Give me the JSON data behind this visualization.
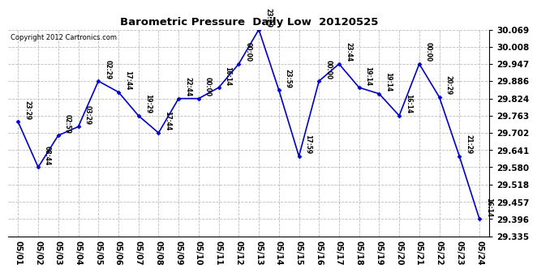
{
  "title": "Barometric Pressure  Daily Low  20120525",
  "copyright": "Copyright 2012 Cartronics.com",
  "background_color": "#ffffff",
  "plot_bg_color": "#ffffff",
  "line_color": "#0000cc",
  "marker_color": "#0000cc",
  "grid_color": "#bbbbbb",
  "dates": [
    "05/01",
    "05/02",
    "05/03",
    "05/04",
    "05/05",
    "05/06",
    "05/07",
    "05/08",
    "05/09",
    "05/10",
    "05/11",
    "05/12",
    "05/13",
    "05/14",
    "05/15",
    "05/16",
    "05/17",
    "05/18",
    "05/19",
    "05/20",
    "05/21",
    "05/22",
    "05/23",
    "05/24"
  ],
  "values": [
    29.741,
    29.58,
    29.693,
    29.724,
    29.886,
    29.847,
    29.763,
    29.702,
    29.824,
    29.824,
    29.863,
    29.947,
    30.069,
    29.854,
    29.619,
    29.886,
    29.947,
    29.863,
    29.841,
    29.763,
    29.947,
    29.829,
    29.619,
    29.396
  ],
  "labels": [
    "23:29",
    "08:44",
    "02:59",
    "03:29",
    "02:29",
    "17:44",
    "19:29",
    "17:44",
    "22:44",
    "00:00",
    "16:14",
    "00:00",
    "23:29",
    "23:59",
    "17:59",
    "00:00",
    "23:44",
    "19:14",
    "19:14",
    "16:14",
    "00:00",
    "20:29",
    "21:29",
    "16:14"
  ],
  "ylim_min": 29.335,
  "ylim_max": 30.069,
  "yticks": [
    29.335,
    29.396,
    29.457,
    29.518,
    29.58,
    29.641,
    29.702,
    29.763,
    29.824,
    29.886,
    29.947,
    30.008,
    30.069
  ]
}
